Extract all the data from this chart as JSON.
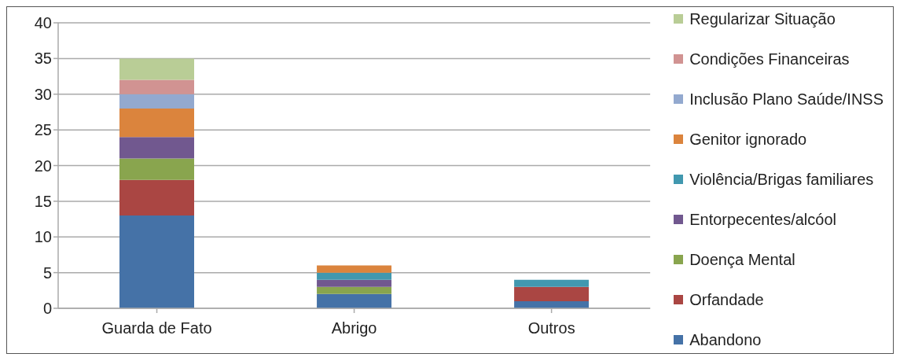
{
  "chart_data": {
    "type": "bar",
    "stacked": true,
    "categories": [
      "Guarda de Fato",
      "Abrigo",
      "Outros"
    ],
    "series": [
      {
        "name": "Abandono",
        "color": "#4572a7",
        "values": [
          13,
          2,
          1
        ]
      },
      {
        "name": "Orfandade",
        "color": "#aa4643",
        "values": [
          5,
          0,
          2
        ]
      },
      {
        "name": "Doença Mental",
        "color": "#89a54e",
        "values": [
          3,
          1,
          0
        ]
      },
      {
        "name": "Entorpecentes/alcóol",
        "color": "#71588f",
        "values": [
          3,
          1,
          0
        ]
      },
      {
        "name": "Violência/Brigas familiares",
        "color": "#4198af",
        "values": [
          0,
          1,
          1
        ]
      },
      {
        "name": "Genitor ignorado",
        "color": "#db843d",
        "values": [
          4,
          1,
          0
        ]
      },
      {
        "name": "Inclusão Plano Saúde/INSS",
        "color": "#93a9cf",
        "values": [
          2,
          0,
          0
        ]
      },
      {
        "name": "Condições Financeiras",
        "color": "#d19392",
        "values": [
          2,
          0,
          0
        ]
      },
      {
        "name": "Regularizar Situação",
        "color": "#b9cd96",
        "values": [
          3,
          0,
          0
        ]
      }
    ],
    "ylim": [
      0,
      40
    ],
    "yticks": [
      0,
      5,
      10,
      15,
      20,
      25,
      30,
      35,
      40
    ],
    "grid": "y",
    "legend": "right"
  }
}
